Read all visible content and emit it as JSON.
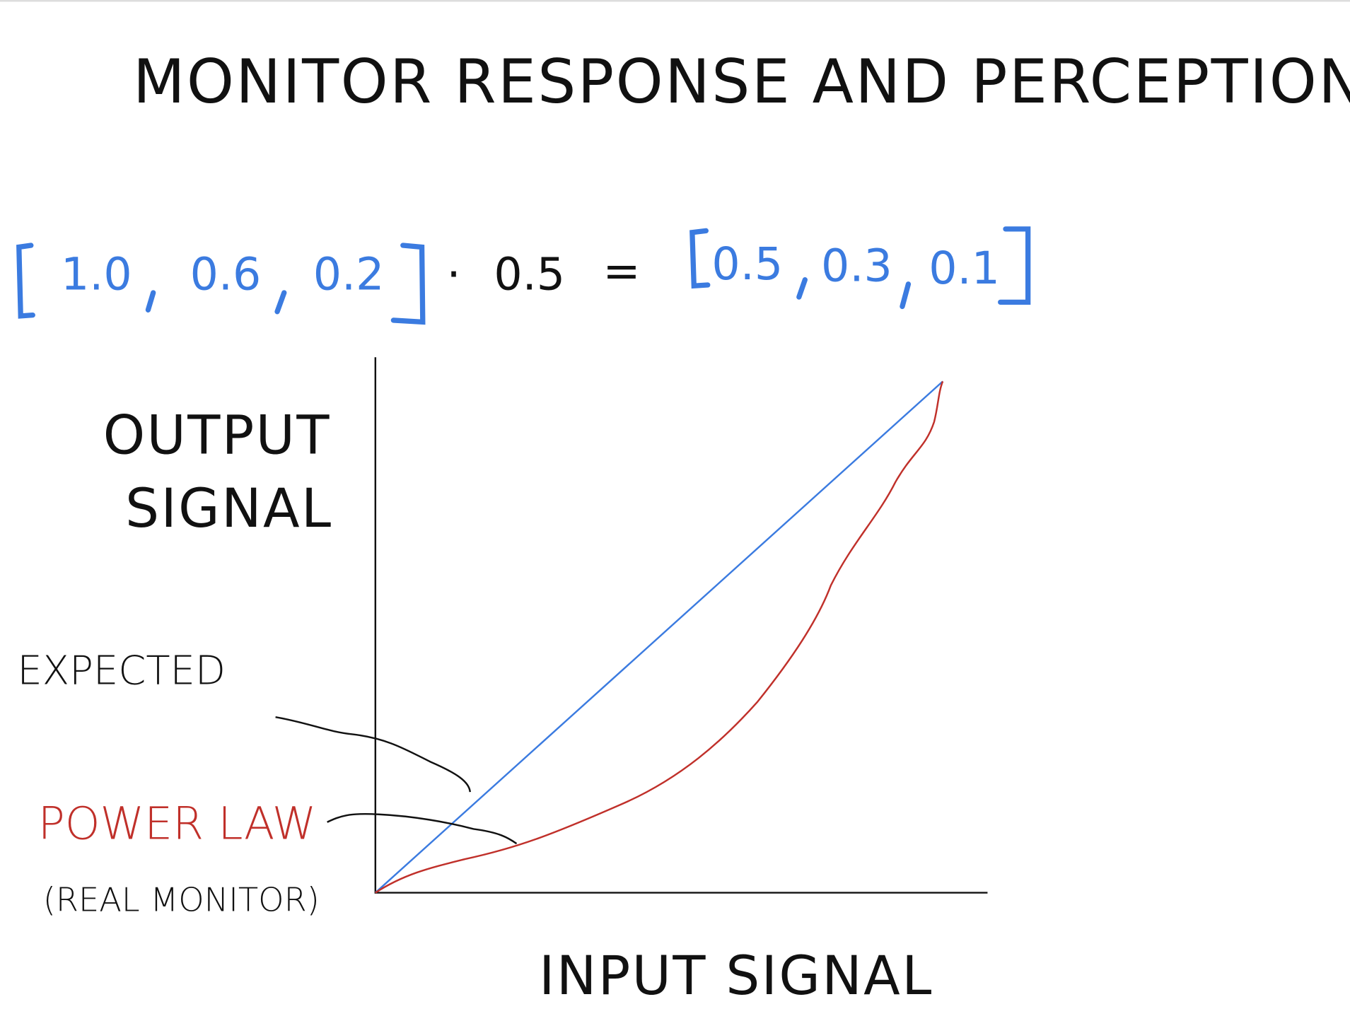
{
  "title": "MONITOR RESPONSE AND PERCEPTION",
  "equation": {
    "left": [
      "1.0",
      "0.6",
      "0.2"
    ],
    "operator": "·",
    "scalar": "0.5",
    "equals": "=",
    "right": [
      "0.5",
      "0.3",
      "0.1"
    ]
  },
  "axes": {
    "y_label": [
      "OUTPUT",
      "SIGNAL"
    ],
    "x_label": "INPUT SIGNAL"
  },
  "annotations": {
    "expected": "EXPECTED",
    "power_law": "POWER LAW",
    "real_monitor": "(REAL MONITOR)"
  }
}
